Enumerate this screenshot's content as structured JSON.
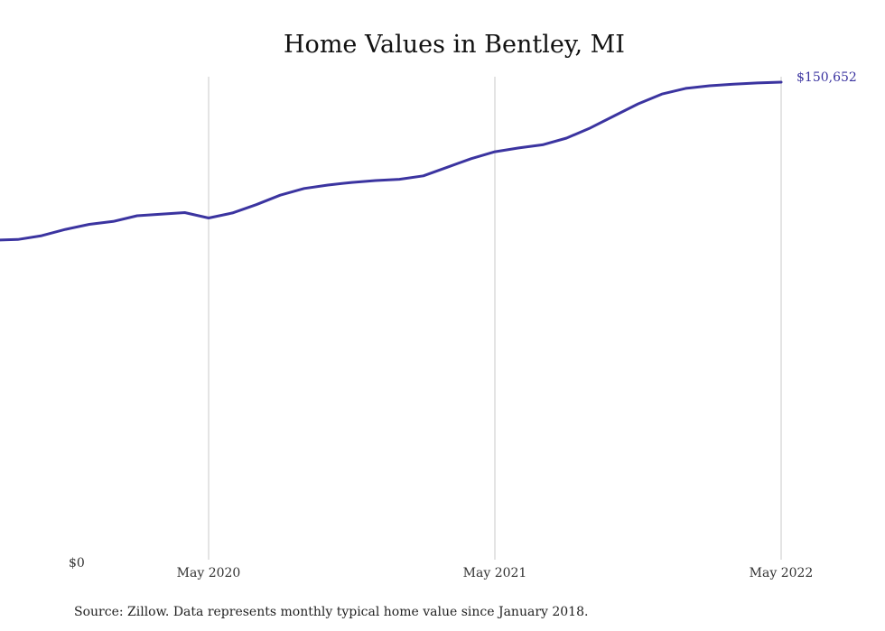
{
  "chart_data": {
    "type": "line",
    "title": "Home Values in Bentley, MI",
    "xlabel": "",
    "ylabel": "",
    "y_tick_labels": [
      "$0"
    ],
    "x_ticks": [
      {
        "date": "2020-05",
        "label": "May 2020"
      },
      {
        "date": "2021-05",
        "label": "May 2021"
      },
      {
        "date": "2022-05",
        "label": "May 2022"
      }
    ],
    "grid": {
      "vertical": true,
      "horizontal": false
    },
    "ylim": [
      0,
      150652
    ],
    "color": "#3b34a0",
    "end_label": "$150,652",
    "series": [
      {
        "x": [
          "2019-08",
          "2019-09",
          "2019-10",
          "2019-11",
          "2019-12",
          "2020-01",
          "2020-02",
          "2020-03",
          "2020-04",
          "2020-05",
          "2020-06",
          "2020-07",
          "2020-08",
          "2020-09",
          "2020-10",
          "2020-11",
          "2020-12",
          "2021-01",
          "2021-02",
          "2021-03",
          "2021-04",
          "2021-05",
          "2021-06",
          "2021-07",
          "2021-08",
          "2021-09",
          "2021-10",
          "2021-11",
          "2021-12",
          "2022-01",
          "2022-02",
          "2022-03",
          "2022-04",
          "2022-05"
        ],
        "values": [
          100800,
          101000,
          102200,
          104200,
          105800,
          106700,
          108500,
          109000,
          109500,
          107800,
          109400,
          112000,
          115000,
          117100,
          118200,
          119000,
          119600,
          120000,
          121100,
          123800,
          126500,
          128700,
          129900,
          130900,
          133000,
          136200,
          140000,
          143800,
          146900,
          148700,
          149500,
          150000,
          150400,
          150652
        ]
      }
    ]
  },
  "footer": {
    "source": "Source: Zillow. Data represents monthly typical home value since January 2018."
  }
}
